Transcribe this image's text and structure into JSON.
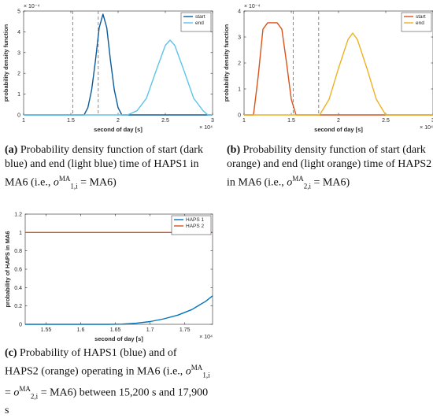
{
  "chart_data": [
    {
      "id": "a",
      "type": "line",
      "xlabel": "second of day [s]",
      "ylabel": "probability density function",
      "xlim": [
        1,
        3
      ],
      "ylim": [
        0,
        5
      ],
      "xticks": [
        "1",
        "1.5",
        "2",
        "2.5",
        "3"
      ],
      "yticks": [
        "0",
        "1",
        "2",
        "3",
        "4",
        "5"
      ],
      "x_exponent": "× 10⁴",
      "y_exponent": "× 10⁻⁴",
      "vlines": [
        1.52,
        1.79
      ],
      "legend_position": "top-right",
      "series": [
        {
          "name": "start",
          "color": "#0a5b9c",
          "x": [
            1.0,
            1.64,
            1.68,
            1.72,
            1.76,
            1.8,
            1.84,
            1.88,
            1.92,
            1.96,
            2.0,
            2.04,
            3.0
          ],
          "y": [
            0,
            0,
            0.35,
            1.2,
            2.6,
            4.2,
            4.85,
            4.2,
            2.6,
            1.2,
            0.35,
            0,
            0
          ]
        },
        {
          "name": "end",
          "color": "#5ec4ea",
          "x": [
            1.0,
            2.1,
            2.2,
            2.3,
            2.4,
            2.5,
            2.55,
            2.6,
            2.7,
            2.8,
            2.9,
            2.95,
            3.0
          ],
          "y": [
            0,
            0,
            0.2,
            0.8,
            2.1,
            3.35,
            3.6,
            3.35,
            2.1,
            0.8,
            0.2,
            0,
            0
          ]
        }
      ]
    },
    {
      "id": "b",
      "type": "line",
      "xlabel": "second of day [s]",
      "ylabel": "probability density function",
      "xlim": [
        1,
        3
      ],
      "ylim": [
        0,
        4
      ],
      "xticks": [
        "1",
        "1.5",
        "2",
        "2.5",
        "3"
      ],
      "yticks": [
        "0",
        "1",
        "2",
        "3",
        "4"
      ],
      "x_exponent": "× 10⁴",
      "y_exponent": "× 10⁻⁴",
      "vlines": [
        1.52,
        1.79
      ],
      "legend_position": "top-right",
      "series": [
        {
          "name": "start",
          "color": "#d9541a",
          "x": [
            1.0,
            1.1,
            1.15,
            1.2,
            1.25,
            1.35,
            1.4,
            1.45,
            1.5,
            1.55,
            3.0
          ],
          "y": [
            0,
            0,
            1.5,
            3.3,
            3.55,
            3.55,
            3.3,
            2.0,
            0.6,
            0,
            0
          ]
        },
        {
          "name": "end",
          "color": "#edb120",
          "x": [
            1.0,
            1.8,
            1.9,
            2.0,
            2.1,
            2.15,
            2.2,
            2.3,
            2.4,
            2.5,
            3.0
          ],
          "y": [
            0,
            0,
            0.6,
            1.8,
            2.9,
            3.15,
            2.9,
            1.8,
            0.6,
            0,
            0
          ]
        }
      ]
    },
    {
      "id": "c",
      "type": "line",
      "xlabel": "second of day [s]",
      "ylabel": "probability of HAPS in MA6",
      "xlim": [
        1.52,
        1.79
      ],
      "ylim": [
        0,
        1.2
      ],
      "xticks": [
        "1.55",
        "1.6",
        "1.65",
        "1.7",
        "1.75"
      ],
      "yticks": [
        "0",
        "0.2",
        "0.4",
        "0.6",
        "0.8",
        "1",
        "1.2"
      ],
      "x_exponent": "× 10⁴",
      "legend_position": "top-right",
      "series": [
        {
          "name": "HAPS 1",
          "color": "#0072bd",
          "x": [
            1.52,
            1.64,
            1.66,
            1.68,
            1.7,
            1.72,
            1.74,
            1.76,
            1.78,
            1.79
          ],
          "y": [
            0,
            0,
            0.003,
            0.012,
            0.03,
            0.06,
            0.1,
            0.16,
            0.25,
            0.31
          ]
        },
        {
          "name": "HAPS 2",
          "color": "#d9541a",
          "x": [
            1.52,
            1.79
          ],
          "y": [
            1,
            1
          ]
        }
      ]
    }
  ],
  "captions": {
    "a": {
      "label": "(a)",
      "text": "Probability density function of start (dark blue) and end (light blue) time of HAPS1 in MA6 (i.e., ",
      "math": "o",
      "sup": "MA",
      "sub": "1,i",
      "eq": " = MA6)"
    },
    "b": {
      "label": "(b)",
      "text": "Probability density function of start (dark orange) and end (light orange) time of HAPS2 in MA6 (i.e., ",
      "math": "o",
      "sup": "MA",
      "sub": "2,i",
      "eq": " = MA6)"
    },
    "c": {
      "label": "(c)",
      "text": "Probability of HAPS1 (blue) and of HAPS2 (orange) operating in MA6 (i.e., ",
      "math1": "o",
      "sup1": "MA",
      "sub1": "1,i",
      "mid": " = ",
      "math2": "o",
      "sup2": "MA",
      "sub2": "2,i",
      "eq": " = MA6) between 15,200 s and 17,900 s"
    }
  }
}
